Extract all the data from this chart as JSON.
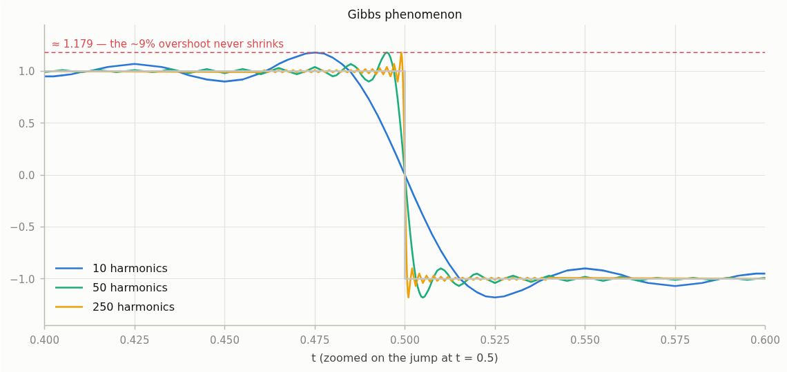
{
  "chart_data": {
    "type": "line",
    "title": "Gibbs phenomenon",
    "xlabel": "t (zoomed on the jump at t = 0.5)",
    "xlim": [
      0.4,
      0.6
    ],
    "xticks": [
      {
        "value": 0.4,
        "label": "0.400"
      },
      {
        "value": 0.425,
        "label": "0.425"
      },
      {
        "value": 0.45,
        "label": "0.450"
      },
      {
        "value": 0.475,
        "label": "0.475"
      },
      {
        "value": 0.5,
        "label": "0.500"
      },
      {
        "value": 0.525,
        "label": "0.525"
      },
      {
        "value": 0.55,
        "label": "0.550"
      },
      {
        "value": 0.575,
        "label": "0.575"
      },
      {
        "value": 0.6,
        "label": "0.600"
      }
    ],
    "ylim": [
      -1.45,
      1.45
    ],
    "yticks": [
      {
        "value": -1,
        "label": "−1.0"
      },
      {
        "value": -0.5,
        "label": "−0.5"
      },
      {
        "value": 0,
        "label": "0.0"
      },
      {
        "value": 0.5,
        "label": "0.5"
      },
      {
        "value": 1,
        "label": "1.0"
      }
    ],
    "grid": true,
    "legend": "bottom left",
    "series": [
      {
        "name": "10 harmonics",
        "color": "#2a77d6",
        "x": [
          0.4,
          0.4025,
          0.405,
          0.4075,
          0.41,
          0.4125,
          0.415,
          0.4175,
          0.42,
          0.4225,
          0.425,
          0.4275,
          0.43,
          0.4325,
          0.435,
          0.4375,
          0.44,
          0.4425,
          0.445,
          0.4475,
          0.45,
          0.4525,
          0.455,
          0.4575,
          0.46,
          0.4625,
          0.465,
          0.4675,
          0.47,
          0.4725,
          0.475,
          0.4775,
          0.48,
          0.4825,
          0.485,
          0.4875,
          0.49,
          0.4925,
          0.495,
          0.4975,
          0.5,
          0.5025,
          0.505,
          0.5075,
          0.51,
          0.5125,
          0.515,
          0.5175,
          0.52,
          0.5225,
          0.525,
          0.5275,
          0.53,
          0.5325,
          0.535,
          0.5375,
          0.54,
          0.5425,
          0.545,
          0.5475,
          0.55,
          0.5525,
          0.555,
          0.5575,
          0.56,
          0.5625,
          0.565,
          0.5675,
          0.57,
          0.5725,
          0.575,
          0.5775,
          0.58,
          0.5825,
          0.585,
          0.5875,
          0.59,
          0.5925,
          0.595,
          0.5975,
          0.6
        ],
        "values": [
          0.95,
          0.95,
          0.96,
          0.97,
          0.99,
          1.0,
          1.02,
          1.04,
          1.05,
          1.06,
          1.07,
          1.06,
          1.05,
          1.04,
          1.02,
          0.99,
          0.96,
          0.94,
          0.92,
          0.91,
          0.9,
          0.91,
          0.92,
          0.95,
          0.98,
          1.02,
          1.07,
          1.11,
          1.14,
          1.17,
          1.18,
          1.17,
          1.13,
          1.07,
          0.99,
          0.87,
          0.73,
          0.57,
          0.39,
          0.2,
          0,
          -0.2,
          -0.39,
          -0.57,
          -0.73,
          -0.87,
          -0.99,
          -1.07,
          -1.13,
          -1.17,
          -1.18,
          -1.17,
          -1.14,
          -1.11,
          -1.07,
          -1.02,
          -0.98,
          -0.95,
          -0.92,
          -0.91,
          -0.9,
          -0.91,
          -0.92,
          -0.94,
          -0.96,
          -0.99,
          -1.02,
          -1.04,
          -1.05,
          -1.06,
          -1.07,
          -1.06,
          -1.05,
          -1.04,
          -1.02,
          -1.0,
          -0.99,
          -0.97,
          -0.96,
          -0.95,
          -0.95
        ]
      },
      {
        "name": "50 harmonics",
        "color": "#1bae7c",
        "x": [
          0.4,
          0.4025,
          0.405,
          0.4075,
          0.41,
          0.4125,
          0.415,
          0.4175,
          0.42,
          0.4225,
          0.425,
          0.4275,
          0.43,
          0.4325,
          0.435,
          0.4375,
          0.44,
          0.4425,
          0.445,
          0.4475,
          0.45,
          0.4525,
          0.455,
          0.4575,
          0.46,
          0.4625,
          0.465,
          0.4675,
          0.47,
          0.4725,
          0.475,
          0.4775,
          0.48,
          0.481,
          0.482,
          0.483,
          0.484,
          0.485,
          0.486,
          0.487,
          0.488,
          0.489,
          0.49,
          0.491,
          0.492,
          0.493,
          0.4935,
          0.494,
          0.4945,
          0.495,
          0.4955,
          0.496,
          0.4965,
          0.497,
          0.4975,
          0.498,
          0.4985,
          0.499,
          0.4995,
          0.5,
          0.5005,
          0.501,
          0.5015,
          0.502,
          0.5025,
          0.503,
          0.5035,
          0.504,
          0.5045,
          0.505,
          0.5055,
          0.506,
          0.5065,
          0.507,
          0.508,
          0.509,
          0.51,
          0.511,
          0.512,
          0.513,
          0.514,
          0.515,
          0.516,
          0.517,
          0.518,
          0.519,
          0.52,
          0.5225,
          0.525,
          0.5275,
          0.53,
          0.5325,
          0.535,
          0.5375,
          0.54,
          0.5425,
          0.545,
          0.5475,
          0.55,
          0.5525,
          0.555,
          0.5575,
          0.56,
          0.5625,
          0.565,
          0.5675,
          0.57,
          0.5725,
          0.575,
          0.5775,
          0.58,
          0.5825,
          0.585,
          0.5875,
          0.59,
          0.5925,
          0.595,
          0.5975,
          0.6
        ],
        "values": [
          0.99,
          1.0,
          1.01,
          1.0,
          0.99,
          1.0,
          1.01,
          1.0,
          0.99,
          1.0,
          1.01,
          1.0,
          0.99,
          1.0,
          1.02,
          1.0,
          0.98,
          1.0,
          1.02,
          1.0,
          0.98,
          1.0,
          1.02,
          1.0,
          0.97,
          1.0,
          1.03,
          1.0,
          0.97,
          1.0,
          1.04,
          1.0,
          0.95,
          0.96,
          0.99,
          1.02,
          1.05,
          1.07,
          1.05,
          1.02,
          0.96,
          0.92,
          0.9,
          0.92,
          0.98,
          1.07,
          1.11,
          1.14,
          1.17,
          1.18,
          1.17,
          1.13,
          1.07,
          0.99,
          0.87,
          0.73,
          0.57,
          0.39,
          0.2,
          0,
          -0.2,
          -0.39,
          -0.57,
          -0.73,
          -0.87,
          -0.99,
          -1.07,
          -1.13,
          -1.17,
          -1.18,
          -1.17,
          -1.14,
          -1.11,
          -1.07,
          -0.98,
          -0.92,
          -0.9,
          -0.92,
          -0.96,
          -1.02,
          -1.05,
          -1.07,
          -1.05,
          -1.02,
          -0.99,
          -0.96,
          -0.95,
          -1.0,
          -1.04,
          -1.0,
          -0.97,
          -1.0,
          -1.03,
          -1.0,
          -0.97,
          -1.0,
          -1.02,
          -1.0,
          -0.98,
          -1.0,
          -1.02,
          -1.0,
          -0.98,
          -1.0,
          -1.02,
          -1.0,
          -0.99,
          -1.0,
          -1.01,
          -1.0,
          -0.99,
          -1.0,
          -1.01,
          -1.0,
          -0.99,
          -1.0,
          -1.01,
          -1.0,
          -0.99
        ]
      },
      {
        "name": "250 harmonics",
        "color": "#eea20a",
        "x": [
          0.4,
          0.46,
          0.461,
          0.462,
          0.463,
          0.464,
          0.465,
          0.466,
          0.467,
          0.468,
          0.469,
          0.47,
          0.471,
          0.472,
          0.473,
          0.474,
          0.475,
          0.476,
          0.477,
          0.478,
          0.479,
          0.48,
          0.481,
          0.482,
          0.483,
          0.484,
          0.485,
          0.486,
          0.487,
          0.488,
          0.489,
          0.49,
          0.491,
          0.492,
          0.493,
          0.494,
          0.495,
          0.496,
          0.4965,
          0.497,
          0.4975,
          0.498,
          0.4985,
          0.499,
          0.4992,
          0.4994,
          0.4996,
          0.4998,
          0.5,
          0.5002,
          0.5004,
          0.5006,
          0.5008,
          0.501,
          0.5015,
          0.502,
          0.5025,
          0.503,
          0.5035,
          0.504,
          0.505,
          0.506,
          0.507,
          0.508,
          0.509,
          0.51,
          0.511,
          0.512,
          0.513,
          0.514,
          0.515,
          0.516,
          0.517,
          0.518,
          0.519,
          0.52,
          0.521,
          0.522,
          0.523,
          0.524,
          0.525,
          0.526,
          0.527,
          0.528,
          0.529,
          0.53,
          0.531,
          0.532,
          0.533,
          0.534,
          0.535,
          0.536,
          0.537,
          0.538,
          0.539,
          0.54,
          0.6
        ],
        "values": [
          1.0,
          0.99,
          1.01,
          0.99,
          1.01,
          0.99,
          1.01,
          0.99,
          1.01,
          0.99,
          1.01,
          0.99,
          1.01,
          0.99,
          1.01,
          0.99,
          1.01,
          0.99,
          1.01,
          0.99,
          1.01,
          0.99,
          1.01,
          0.99,
          1.01,
          0.99,
          1.01,
          0.99,
          1.02,
          0.98,
          1.02,
          0.98,
          1.02,
          0.97,
          1.03,
          0.97,
          1.04,
          0.95,
          1.0,
          1.07,
          0.99,
          0.9,
          1.02,
          1.18,
          1.13,
          0.99,
          0.73,
          0.39,
          0,
          -0.39,
          -0.73,
          -0.99,
          -1.13,
          -1.18,
          -1.02,
          -0.9,
          -0.99,
          -1.07,
          -1.0,
          -0.95,
          -1.04,
          -0.97,
          -1.03,
          -0.97,
          -1.02,
          -0.98,
          -1.02,
          -0.98,
          -1.02,
          -0.99,
          -1.01,
          -0.99,
          -1.01,
          -0.99,
          -1.01,
          -0.99,
          -1.01,
          -0.99,
          -1.01,
          -0.99,
          -1.01,
          -0.99,
          -1.01,
          -0.99,
          -1.01,
          -0.99,
          -1.01,
          -0.99,
          -1.01,
          -0.99,
          -1.01,
          -0.99,
          -1.01,
          -0.99,
          -1.01,
          -0.99,
          -1.0
        ]
      },
      {
        "color": "#c4c4c0",
        "x": [
          0.4,
          0.5,
          0.5,
          0.6
        ],
        "values": [
          1,
          1,
          -1,
          -1
        ]
      }
    ],
    "ref_lines": [
      {
        "axis": "y",
        "value": 1.179,
        "label": "≈ 1.179 — the ~9% overshoot never shrinks",
        "color": "#e0474c",
        "line_style": "dashed"
      }
    ]
  }
}
